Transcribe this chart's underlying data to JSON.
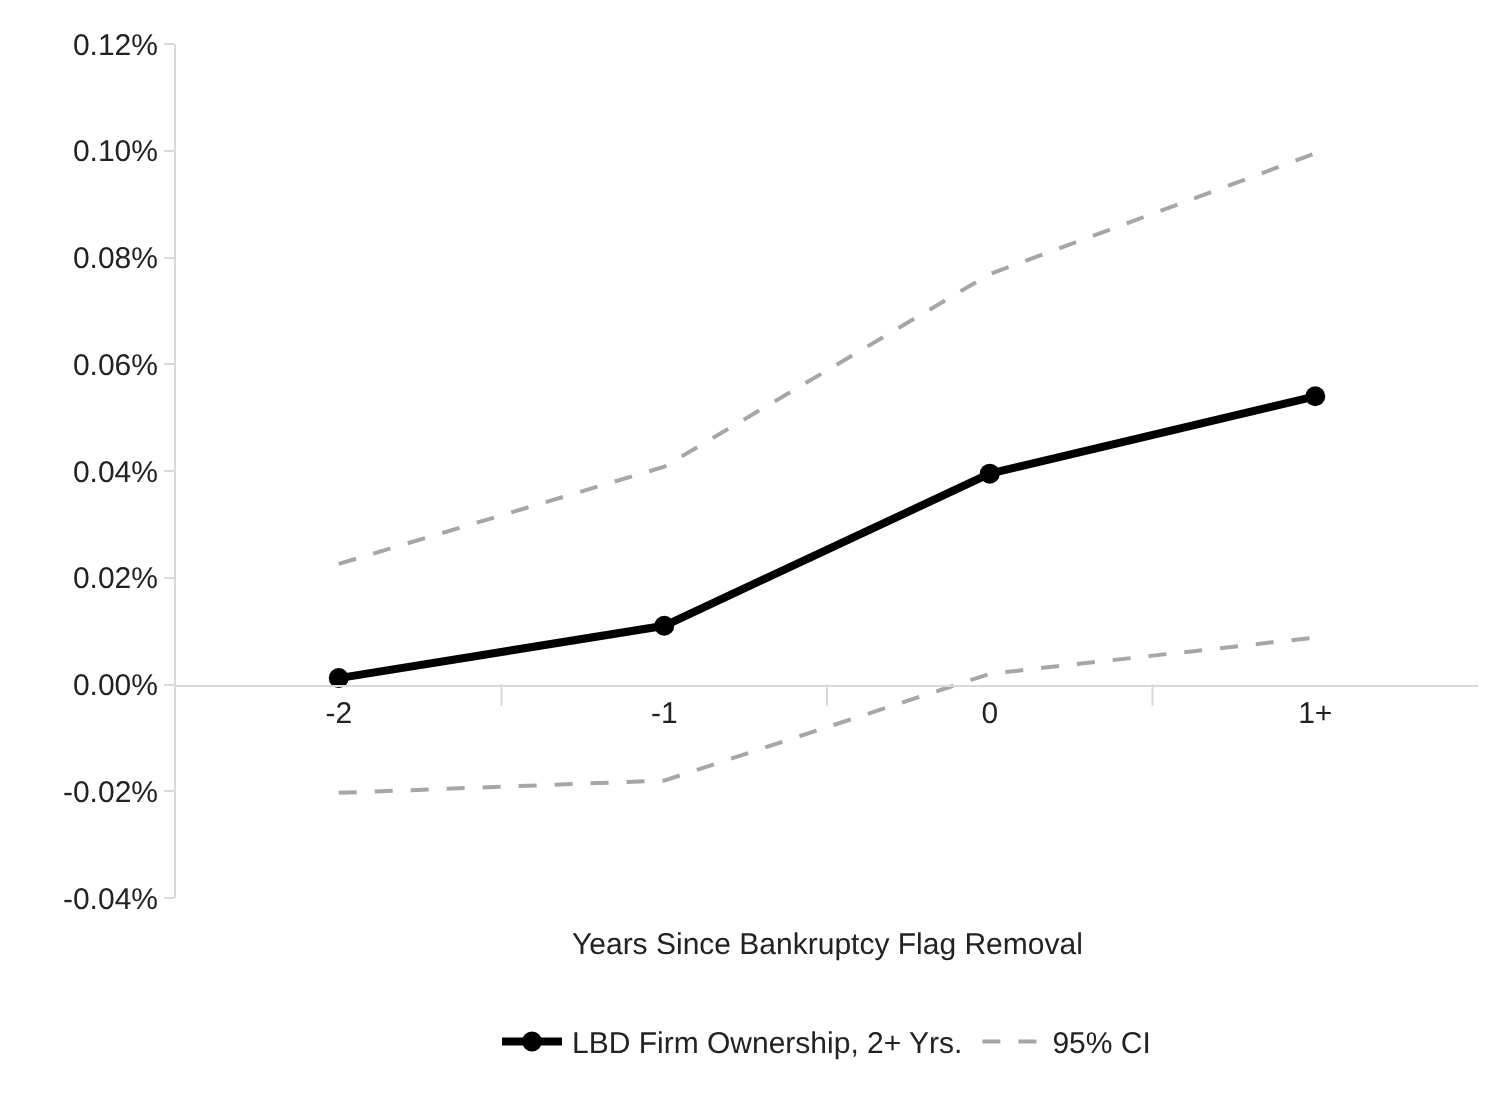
{
  "chart_data": {
    "type": "line",
    "xlabel": "Years Since Bankruptcy Flag Removal",
    "categories": [
      "-2",
      "-1",
      "0",
      "1+"
    ],
    "series": [
      {
        "name": "LBD Firm Ownership, 2+ Yrs.",
        "color": "#000000",
        "values": [
          0.0012,
          0.011,
          0.0395,
          0.054
        ],
        "marker": "circle",
        "line_style": "solid"
      },
      {
        "name": "95% CI",
        "color": "#a6a6a6",
        "values": [
          0.0226,
          0.0408,
          0.0769,
          0.0995
        ],
        "marker": "none",
        "line_style": "dashed"
      },
      {
        "color": "#a6a6a6",
        "values": [
          -0.0203,
          -0.018,
          0.002,
          0.0088
        ],
        "marker": "none",
        "line_style": "dashed"
      }
    ],
    "ylim": [
      -0.04,
      0.12
    ],
    "yticks": [
      {
        "value": -0.04,
        "label": "-0.04%"
      },
      {
        "value": -0.02,
        "label": "-0.02%"
      },
      {
        "value": 0,
        "label": "0.00%"
      },
      {
        "value": 0.02,
        "label": "0.02%"
      },
      {
        "value": 0.04,
        "label": "0.04%"
      },
      {
        "value": 0.06,
        "label": "0.06%"
      },
      {
        "value": 0.08,
        "label": "0.08%"
      },
      {
        "value": 0.1,
        "label": "0.10%"
      },
      {
        "value": 0.12,
        "label": "0.12%"
      }
    ],
    "grid": false,
    "legend": "bottom"
  }
}
